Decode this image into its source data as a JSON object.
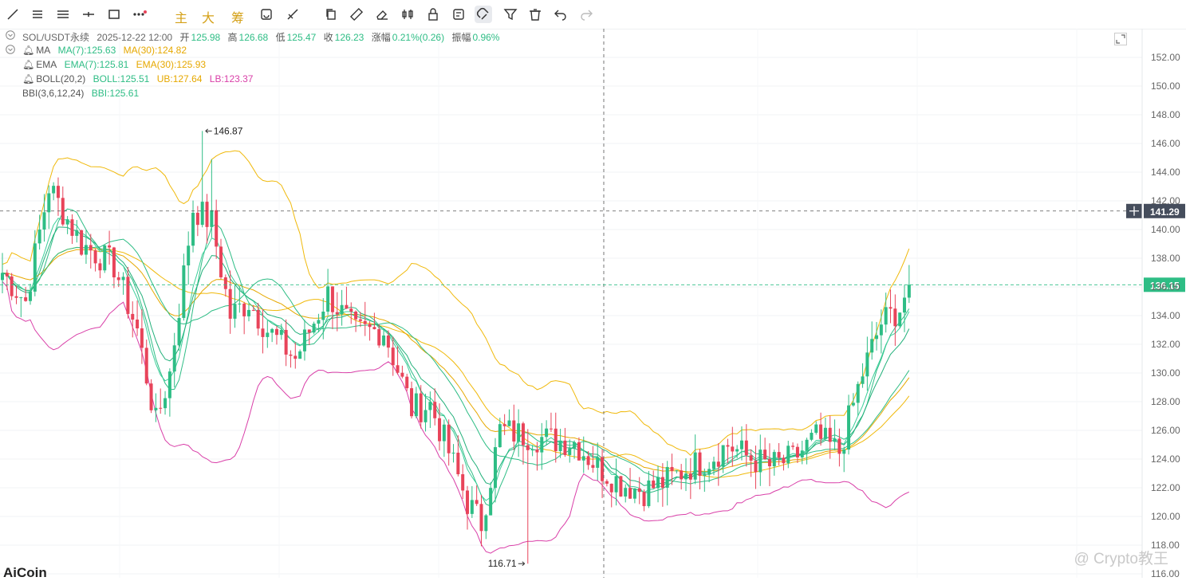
{
  "toolbar": {
    "tools": [
      "trend-line",
      "parallel-lines",
      "horizontal-lines",
      "horizontal-segment",
      "rectangle",
      "more-tools"
    ],
    "tools2": [
      "copy-icon",
      "ruler-icon",
      "eraser-icon",
      "candle-type-icon",
      "lock-icon",
      "note-icon",
      "magnet-icon",
      "filter-icon",
      "trash-icon",
      "undo-icon",
      "redo-icon"
    ],
    "labels": {
      "main": "主",
      "big": "大",
      "chips": "筹"
    }
  },
  "header": {
    "symbol": "SOL/USDT永续",
    "datetime": "2025-12-22 12:00",
    "open_label": "开",
    "open": "125.98",
    "high_label": "高",
    "high": "126.68",
    "low_label": "低",
    "low": "125.47",
    "close_label": "收",
    "close": "126.23",
    "change_label": "涨幅",
    "change": "0.21%(0.26)",
    "amp_label": "振幅",
    "amp": "0.96%"
  },
  "indicators": {
    "ma": {
      "name": "MA",
      "v1": "MA(7):125.63",
      "v2": "MA(30):124.82"
    },
    "ema": {
      "name": "EMA",
      "v1": "EMA(7):125.81",
      "v2": "EMA(30):125.93"
    },
    "boll": {
      "name": "BOLL(20,2)",
      "v1": "BOLL:125.51",
      "v2": "UB:127.64",
      "v3": "LB:123.37"
    },
    "bbi": {
      "name": "BBI(3,6,12,24)",
      "v1": "BBI:125.61"
    }
  },
  "colors": {
    "up": "#2ebd85",
    "down": "#e8445a",
    "ma7": "#2ebd85",
    "ma30": "#f0b90b",
    "lb": "#d93fa8",
    "bbi": "#2ebd85"
  },
  "chart_data": {
    "type": "candlestick",
    "y_axis": {
      "ticks": [
        "152.00",
        "150.00",
        "148.00",
        "146.00",
        "144.00",
        "142.00",
        "140.00",
        "138.00",
        "136.00",
        "134.00",
        "132.00",
        "130.00",
        "128.00",
        "126.00",
        "124.00",
        "122.00",
        "120.00",
        "118.00",
        "116.00"
      ],
      "ylim": [
        116,
        152
      ]
    },
    "crosshair_price": "141.29",
    "last_price": "136.15",
    "high_marker": "146.87",
    "low_marker": "116.71",
    "anchors": [
      [
        0,
        137.0
      ],
      [
        5,
        135.0
      ],
      [
        10,
        143.0
      ],
      [
        17,
        139.0
      ],
      [
        24,
        137.5
      ],
      [
        29,
        133.0
      ],
      [
        33,
        126.5
      ],
      [
        36,
        130.0
      ],
      [
        41,
        141.5
      ],
      [
        45,
        140.5
      ],
      [
        49,
        134.0
      ],
      [
        53,
        135.0
      ],
      [
        57,
        133.0
      ],
      [
        63,
        131.0
      ],
      [
        70,
        135.5
      ],
      [
        76,
        132.8
      ],
      [
        82,
        133.0
      ],
      [
        88,
        127.5
      ],
      [
        92,
        127.8
      ],
      [
        96,
        124.5
      ],
      [
        100,
        121.0
      ],
      [
        103,
        119.5
      ],
      [
        107,
        126.0
      ],
      [
        112,
        125.7
      ],
      [
        117,
        125.4
      ],
      [
        123,
        125.2
      ],
      [
        128,
        123.5
      ],
      [
        133,
        122.3
      ],
      [
        138,
        121.8
      ],
      [
        143,
        122.5
      ],
      [
        148,
        123.5
      ],
      [
        152,
        124.0
      ],
      [
        156,
        125.0
      ],
      [
        160,
        124.2
      ],
      [
        165,
        123.5
      ],
      [
        170,
        124.0
      ],
      [
        175,
        125.5
      ],
      [
        180,
        124.5
      ],
      [
        185,
        130.0
      ],
      [
        189,
        133.5
      ],
      [
        193,
        134.5
      ],
      [
        195,
        136.15
      ]
    ],
    "candle_count": 196
  },
  "watermark": "@ Crypto教王",
  "logo": "AiCoin"
}
